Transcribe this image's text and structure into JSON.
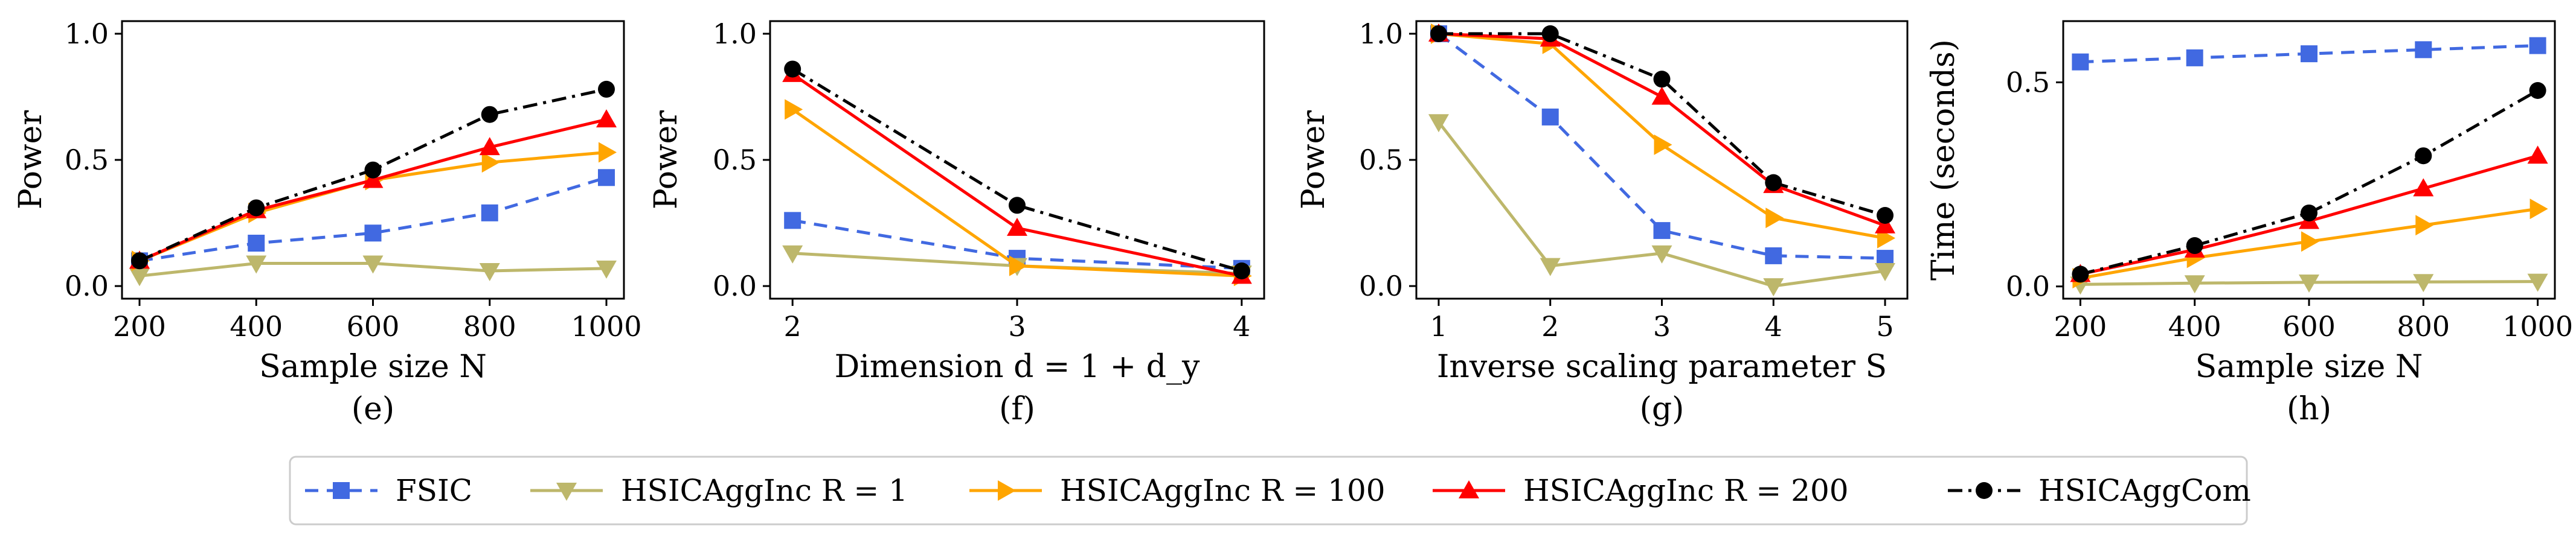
{
  "series_styles": [
    {
      "key": "fsic",
      "color": "#4169e1",
      "dash": "22,14",
      "marker": "square"
    },
    {
      "key": "inc1",
      "color": "#bdb76b",
      "dash": "",
      "marker": "triangle-down"
    },
    {
      "key": "inc100",
      "color": "#ffa500",
      "dash": "",
      "marker": "triangle-right"
    },
    {
      "key": "inc200",
      "color": "#ff0000",
      "dash": "",
      "marker": "triangle-up"
    },
    {
      "key": "com",
      "color": "#000000",
      "dash": "24,10,5,10",
      "marker": "circle"
    }
  ],
  "legend": {
    "entries": [
      "FSIC",
      "HSICAggInc R = 1",
      "HSICAggInc R = 100",
      "HSICAggInc R = 200",
      "HSICAggCom"
    ]
  },
  "chart_data": [
    {
      "type": "line",
      "panel_label": "(e)",
      "xlabel": "Sample size N",
      "ylabel": "Power",
      "x": [
        200,
        400,
        600,
        800,
        1000
      ],
      "xticks": [
        "200",
        "400",
        "600",
        "800",
        "1000"
      ],
      "yticks": [
        "0.0",
        "0.5",
        "1.0"
      ],
      "ytick_values": [
        0,
        0.5,
        1
      ],
      "xlim": [
        170,
        1030
      ],
      "ylim": [
        -0.05,
        1.05
      ],
      "series": [
        {
          "key": "fsic",
          "values": [
            0.1,
            0.17,
            0.21,
            0.29,
            0.43
          ]
        },
        {
          "key": "inc1",
          "values": [
            0.04,
            0.09,
            0.09,
            0.06,
            0.07
          ]
        },
        {
          "key": "inc100",
          "values": [
            0.1,
            0.29,
            0.42,
            0.49,
            0.53
          ]
        },
        {
          "key": "inc200",
          "values": [
            0.1,
            0.3,
            0.42,
            0.55,
            0.66
          ]
        },
        {
          "key": "com",
          "values": [
            0.1,
            0.31,
            0.46,
            0.68,
            0.78
          ]
        }
      ]
    },
    {
      "type": "line",
      "panel_label": "(f)",
      "xlabel": "Dimension d = 1 + d_y",
      "ylabel": "Power",
      "x": [
        2,
        3,
        4
      ],
      "xticks": [
        "2",
        "3",
        "4"
      ],
      "yticks": [
        "0.0",
        "0.5",
        "1.0"
      ],
      "ytick_values": [
        0,
        0.5,
        1
      ],
      "xlim": [
        1.9,
        4.1
      ],
      "ylim": [
        -0.05,
        1.05
      ],
      "series": [
        {
          "key": "fsic",
          "values": [
            0.26,
            0.11,
            0.07
          ]
        },
        {
          "key": "inc1",
          "values": [
            0.13,
            0.08,
            0.05
          ]
        },
        {
          "key": "inc100",
          "values": [
            0.7,
            0.08,
            0.04
          ]
        },
        {
          "key": "inc200",
          "values": [
            0.84,
            0.23,
            0.04
          ]
        },
        {
          "key": "com",
          "values": [
            0.86,
            0.32,
            0.06
          ]
        }
      ]
    },
    {
      "type": "line",
      "panel_label": "(g)",
      "xlabel": "Inverse scaling parameter S",
      "ylabel": "Power",
      "x": [
        1,
        2,
        3,
        4,
        5
      ],
      "xticks": [
        "1",
        "2",
        "3",
        "4",
        "5"
      ],
      "yticks": [
        "0.0",
        "0.5",
        "1.0"
      ],
      "ytick_values": [
        0,
        0.5,
        1
      ],
      "xlim": [
        0.8,
        5.2
      ],
      "ylim": [
        -0.05,
        1.05
      ],
      "series": [
        {
          "key": "fsic",
          "values": [
            1.0,
            0.67,
            0.22,
            0.12,
            0.11
          ]
        },
        {
          "key": "inc1",
          "values": [
            0.65,
            0.08,
            0.13,
            0.0,
            0.06
          ]
        },
        {
          "key": "inc100",
          "values": [
            1.0,
            0.96,
            0.56,
            0.27,
            0.19
          ]
        },
        {
          "key": "inc200",
          "values": [
            1.0,
            0.98,
            0.75,
            0.4,
            0.24
          ]
        },
        {
          "key": "com",
          "values": [
            1.0,
            1.0,
            0.82,
            0.41,
            0.28
          ]
        }
      ]
    },
    {
      "type": "line",
      "panel_label": "(h)",
      "xlabel": "Sample size N",
      "ylabel": "Time (seconds)",
      "x": [
        200,
        400,
        600,
        800,
        1000
      ],
      "xticks": [
        "200",
        "400",
        "600",
        "800",
        "1000"
      ],
      "yticks": [
        "0.0",
        "0.5"
      ],
      "ytick_values": [
        0,
        0.5
      ],
      "xlim": [
        170,
        1030
      ],
      "ylim": [
        -0.03,
        0.65
      ],
      "series": [
        {
          "key": "fsic",
          "values": [
            0.55,
            0.56,
            0.57,
            0.58,
            0.59
          ]
        },
        {
          "key": "inc1",
          "values": [
            0.005,
            0.008,
            0.01,
            0.011,
            0.012
          ]
        },
        {
          "key": "inc100",
          "values": [
            0.02,
            0.07,
            0.11,
            0.15,
            0.19
          ]
        },
        {
          "key": "inc200",
          "values": [
            0.03,
            0.09,
            0.16,
            0.24,
            0.32
          ]
        },
        {
          "key": "com",
          "values": [
            0.03,
            0.1,
            0.18,
            0.32,
            0.48
          ]
        }
      ]
    }
  ]
}
